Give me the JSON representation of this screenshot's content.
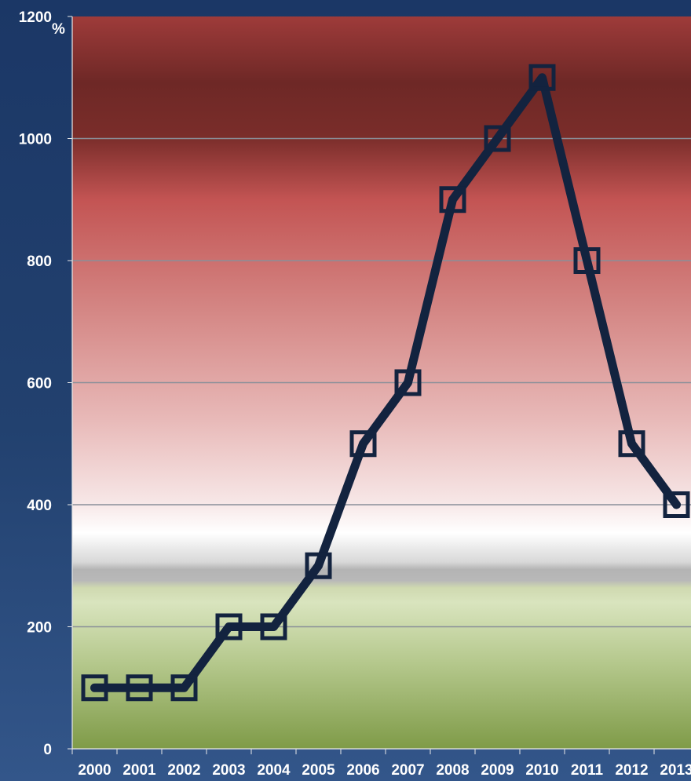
{
  "chart_data": {
    "type": "line",
    "title": "",
    "xlabel": "",
    "ylabel": "",
    "y_unit": "%",
    "categories": [
      "2000",
      "2001",
      "2002",
      "2003",
      "2004",
      "2005",
      "2006",
      "2007",
      "2008",
      "2009",
      "2010",
      "2011",
      "2012",
      "2013"
    ],
    "series": [
      {
        "values": [
          100,
          100,
          100,
          200,
          200,
          300,
          500,
          600,
          900,
          1000,
          1100,
          800,
          500,
          400
        ]
      }
    ],
    "ylim": [
      0,
      1200
    ],
    "yticks": [
      0,
      200,
      400,
      600,
      800,
      1000,
      1200
    ],
    "grid": true,
    "legend": "none",
    "colors": {
      "line": "#13233f",
      "gridline": "#8a8f99",
      "band_high": "#a13a3a",
      "band_low": "#86a04c"
    }
  }
}
